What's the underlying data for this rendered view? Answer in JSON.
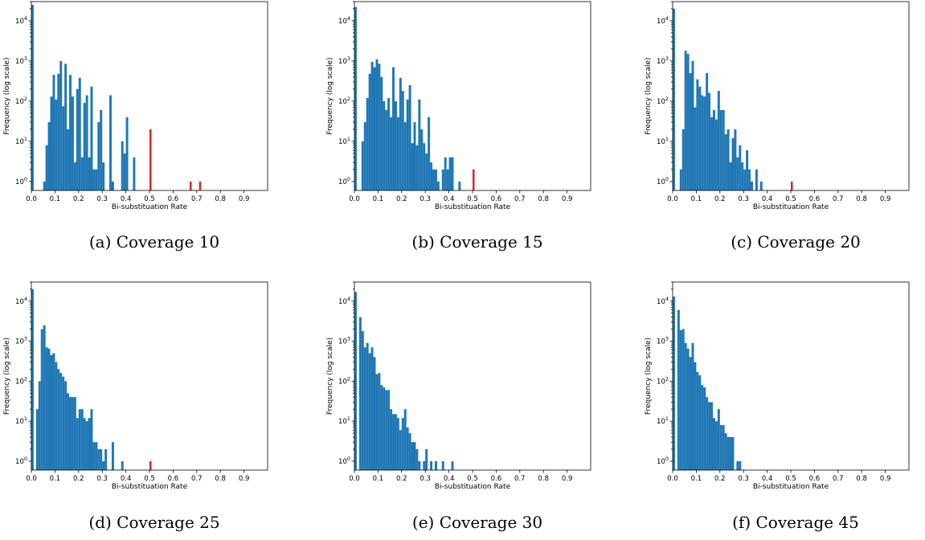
{
  "chart_data": [
    {
      "type": "bar",
      "caption": "(a) Coverage 10",
      "xlabel": "Bi-substituation Rate",
      "ylabel": "Frequency (log scale)",
      "x_ticks": [
        "0.0",
        "0.1",
        "0.2",
        "0.3",
        "0.4",
        "0.5",
        "0.6",
        "0.7",
        "0.8",
        "0.9"
      ],
      "y_scale": "log",
      "xlim": [
        0,
        1.0
      ],
      "ylim": [
        0.6,
        30000
      ],
      "bin_width": 0.01,
      "colors": {
        "normal": "#1f77b4",
        "highlight": "#d62728"
      },
      "series": [
        {
          "values": [
            [
              0.0,
              25000
            ],
            [
              0.05,
              1
            ],
            [
              0.06,
              8
            ],
            [
              0.07,
              30
            ],
            [
              0.08,
              130
            ],
            [
              0.09,
              450
            ],
            [
              0.1,
              110
            ],
            [
              0.11,
              480
            ],
            [
              0.12,
              1000
            ],
            [
              0.13,
              75
            ],
            [
              0.14,
              850
            ],
            [
              0.15,
              20
            ],
            [
              0.16,
              450
            ],
            [
              0.17,
              130
            ],
            [
              0.18,
              3
            ],
            [
              0.19,
              200
            ],
            [
              0.2,
              380
            ],
            [
              0.21,
              4
            ],
            [
              0.22,
              90
            ],
            [
              0.23,
              140
            ],
            [
              0.24,
              4
            ],
            [
              0.25,
              230
            ],
            [
              0.26,
              2
            ],
            [
              0.27,
              2
            ],
            [
              0.28,
              30
            ],
            [
              0.29,
              60
            ],
            [
              0.3,
              3
            ],
            [
              0.33,
              140
            ],
            [
              0.34,
              1
            ],
            [
              0.38,
              10
            ],
            [
              0.39,
              5
            ],
            [
              0.4,
              40
            ],
            [
              0.43,
              4
            ]
          ]
        },
        {
          "name": "",
          "highlight": true,
          "values": [
            [
              0.5,
              20
            ],
            [
              0.67,
              1
            ],
            [
              0.71,
              1
            ]
          ]
        }
      ]
    },
    {
      "type": "bar",
      "caption": "(b) Coverage 15",
      "xlabel": "Bi-substituation Rate",
      "ylabel": "Frequency (log scale)",
      "x_ticks": [
        "0.0",
        "0.1",
        "0.2",
        "0.3",
        "0.4",
        "0.5",
        "0.6",
        "0.7",
        "0.8",
        "0.9"
      ],
      "y_scale": "log",
      "xlim": [
        0,
        1.0
      ],
      "ylim": [
        0.6,
        30000
      ],
      "bin_width": 0.01,
      "colors": {
        "normal": "#1f77b4",
        "highlight": "#d62728"
      },
      "series": [
        {
          "values": [
            [
              0.0,
              22000
            ],
            [
              0.03,
              10
            ],
            [
              0.04,
              30
            ],
            [
              0.05,
              120
            ],
            [
              0.06,
              480
            ],
            [
              0.07,
              950
            ],
            [
              0.08,
              700
            ],
            [
              0.09,
              1100
            ],
            [
              0.1,
              850
            ],
            [
              0.11,
              400
            ],
            [
              0.12,
              100
            ],
            [
              0.13,
              60
            ],
            [
              0.14,
              120
            ],
            [
              0.15,
              40
            ],
            [
              0.16,
              700
            ],
            [
              0.17,
              100
            ],
            [
              0.18,
              40
            ],
            [
              0.19,
              380
            ],
            [
              0.2,
              180
            ],
            [
              0.21,
              30
            ],
            [
              0.22,
              110
            ],
            [
              0.23,
              250
            ],
            [
              0.24,
              9
            ],
            [
              0.25,
              30
            ],
            [
              0.26,
              8
            ],
            [
              0.27,
              110
            ],
            [
              0.28,
              20
            ],
            [
              0.29,
              9
            ],
            [
              0.3,
              5
            ],
            [
              0.31,
              40
            ],
            [
              0.32,
              3
            ],
            [
              0.33,
              2
            ],
            [
              0.34,
              2
            ],
            [
              0.35,
              1
            ],
            [
              0.37,
              2
            ],
            [
              0.38,
              4
            ],
            [
              0.39,
              2
            ],
            [
              0.4,
              4
            ],
            [
              0.41,
              4
            ],
            [
              0.44,
              1
            ]
          ]
        },
        {
          "name": "",
          "highlight": true,
          "values": [
            [
              0.5,
              2
            ]
          ]
        }
      ]
    },
    {
      "type": "bar",
      "caption": "(c) Coverage 20",
      "xlabel": "Bi-substituation Rate",
      "ylabel": "Frequency (log scale)",
      "x_ticks": [
        "0.0",
        "0.1",
        "0.2",
        "0.3",
        "0.4",
        "0.5",
        "0.6",
        "0.7",
        "0.8",
        "0.9"
      ],
      "y_scale": "log",
      "xlim": [
        0,
        1.0
      ],
      "ylim": [
        0.6,
        30000
      ],
      "bin_width": 0.01,
      "colors": {
        "normal": "#1f77b4",
        "highlight": "#d62728"
      },
      "series": [
        {
          "values": [
            [
              0.0,
              20000
            ],
            [
              0.03,
              2
            ],
            [
              0.04,
              20
            ],
            [
              0.05,
              1800
            ],
            [
              0.06,
              1500
            ],
            [
              0.07,
              500
            ],
            [
              0.08,
              1000
            ],
            [
              0.09,
              70
            ],
            [
              0.1,
              350
            ],
            [
              0.11,
              230
            ],
            [
              0.12,
              140
            ],
            [
              0.13,
              130
            ],
            [
              0.14,
              500
            ],
            [
              0.15,
              160
            ],
            [
              0.16,
              40
            ],
            [
              0.17,
              60
            ],
            [
              0.18,
              35
            ],
            [
              0.19,
              180
            ],
            [
              0.2,
              60
            ],
            [
              0.21,
              60
            ],
            [
              0.22,
              15
            ],
            [
              0.23,
              20
            ],
            [
              0.24,
              3
            ],
            [
              0.25,
              12
            ],
            [
              0.26,
              20
            ],
            [
              0.27,
              4
            ],
            [
              0.28,
              8
            ],
            [
              0.29,
              3
            ],
            [
              0.3,
              2
            ],
            [
              0.31,
              6
            ],
            [
              0.32,
              2
            ],
            [
              0.33,
              1
            ],
            [
              0.35,
              2
            ],
            [
              0.37,
              1
            ]
          ]
        },
        {
          "name": "",
          "highlight": true,
          "values": [
            [
              0.5,
              1
            ]
          ]
        }
      ]
    },
    {
      "type": "bar",
      "caption": "(d) Coverage 25",
      "xlabel": "Bi-substituation Rate",
      "ylabel": "Frequency (log scale)",
      "x_ticks": [
        "0.0",
        "0.1",
        "0.2",
        "0.3",
        "0.4",
        "0.5",
        "0.6",
        "0.7",
        "0.8",
        "0.9"
      ],
      "y_scale": "log",
      "xlim": [
        0,
        1.0
      ],
      "ylim": [
        0.6,
        30000
      ],
      "bin_width": 0.01,
      "colors": {
        "normal": "#1f77b4",
        "highlight": "#d62728"
      },
      "series": [
        {
          "values": [
            [
              0.0,
              20000
            ],
            [
              0.02,
              20
            ],
            [
              0.03,
              100
            ],
            [
              0.04,
              2000
            ],
            [
              0.05,
              2500
            ],
            [
              0.06,
              700
            ],
            [
              0.07,
              650
            ],
            [
              0.08,
              450
            ],
            [
              0.09,
              500
            ],
            [
              0.1,
              300
            ],
            [
              0.11,
              200
            ],
            [
              0.12,
              160
            ],
            [
              0.13,
              130
            ],
            [
              0.14,
              100
            ],
            [
              0.15,
              50
            ],
            [
              0.16,
              40
            ],
            [
              0.17,
              40
            ],
            [
              0.18,
              40
            ],
            [
              0.19,
              12
            ],
            [
              0.2,
              20
            ],
            [
              0.21,
              20
            ],
            [
              0.22,
              12
            ],
            [
              0.23,
              10
            ],
            [
              0.24,
              12
            ],
            [
              0.25,
              20
            ],
            [
              0.26,
              3
            ],
            [
              0.27,
              3
            ],
            [
              0.28,
              2
            ],
            [
              0.29,
              2
            ],
            [
              0.3,
              1
            ],
            [
              0.31,
              2
            ],
            [
              0.34,
              3
            ],
            [
              0.38,
              1
            ]
          ]
        },
        {
          "name": "",
          "highlight": true,
          "values": [
            [
              0.5,
              1
            ]
          ]
        }
      ]
    },
    {
      "type": "bar",
      "caption": "(e) Coverage 30",
      "xlabel": "Bi-substituation Rate",
      "ylabel": "Frequency (log scale)",
      "x_ticks": [
        "0.0",
        "0.1",
        "0.2",
        "0.3",
        "0.4",
        "0.5",
        "0.6",
        "0.7",
        "0.8",
        "0.9"
      ],
      "y_scale": "log",
      "xlim": [
        0,
        1.0
      ],
      "ylim": [
        0.6,
        30000
      ],
      "bin_width": 0.01,
      "colors": {
        "normal": "#1f77b4",
        "highlight": "#d62728"
      },
      "series": [
        {
          "values": [
            [
              0.0,
              17000
            ],
            [
              0.02,
              4000
            ],
            [
              0.03,
              1800
            ],
            [
              0.04,
              700
            ],
            [
              0.05,
              900
            ],
            [
              0.06,
              500
            ],
            [
              0.07,
              700
            ],
            [
              0.08,
              400
            ],
            [
              0.09,
              150
            ],
            [
              0.1,
              160
            ],
            [
              0.11,
              80
            ],
            [
              0.12,
              70
            ],
            [
              0.13,
              60
            ],
            [
              0.14,
              60
            ],
            [
              0.15,
              20
            ],
            [
              0.16,
              15
            ],
            [
              0.17,
              15
            ],
            [
              0.18,
              12
            ],
            [
              0.19,
              6
            ],
            [
              0.2,
              12
            ],
            [
              0.21,
              20
            ],
            [
              0.22,
              7
            ],
            [
              0.23,
              5
            ],
            [
              0.24,
              3
            ],
            [
              0.25,
              3
            ],
            [
              0.26,
              2
            ],
            [
              0.27,
              1
            ],
            [
              0.29,
              1
            ],
            [
              0.3,
              2
            ],
            [
              0.32,
              1
            ],
            [
              0.34,
              1
            ],
            [
              0.37,
              1
            ],
            [
              0.41,
              1
            ]
          ]
        }
      ]
    },
    {
      "type": "bar",
      "caption": "(f) Coverage 45",
      "xlabel": "Bi-substituation Rate",
      "ylabel": "Frequency (log scale)",
      "x_ticks": [
        "0.0",
        "0.1",
        "0.2",
        "0.3",
        "0.4",
        "0.5",
        "0.6",
        "0.7",
        "0.8",
        "0.9"
      ],
      "y_scale": "log",
      "xlim": [
        0,
        1.0
      ],
      "ylim": [
        0.6,
        30000
      ],
      "bin_width": 0.01,
      "colors": {
        "normal": "#1f77b4",
        "highlight": "#d62728"
      },
      "series": [
        {
          "values": [
            [
              0.0,
              13000
            ],
            [
              0.02,
              6000
            ],
            [
              0.03,
              1900
            ],
            [
              0.04,
              2000
            ],
            [
              0.05,
              900
            ],
            [
              0.06,
              650
            ],
            [
              0.07,
              400
            ],
            [
              0.08,
              900
            ],
            [
              0.09,
              300
            ],
            [
              0.1,
              170
            ],
            [
              0.11,
              140
            ],
            [
              0.12,
              80
            ],
            [
              0.13,
              70
            ],
            [
              0.14,
              40
            ],
            [
              0.15,
              30
            ],
            [
              0.16,
              30
            ],
            [
              0.17,
              12
            ],
            [
              0.18,
              10
            ],
            [
              0.19,
              20
            ],
            [
              0.2,
              8
            ],
            [
              0.21,
              8
            ],
            [
              0.22,
              5
            ],
            [
              0.23,
              4
            ],
            [
              0.24,
              4
            ],
            [
              0.25,
              4
            ],
            [
              0.27,
              1
            ],
            [
              0.28,
              1
            ]
          ]
        }
      ]
    }
  ]
}
